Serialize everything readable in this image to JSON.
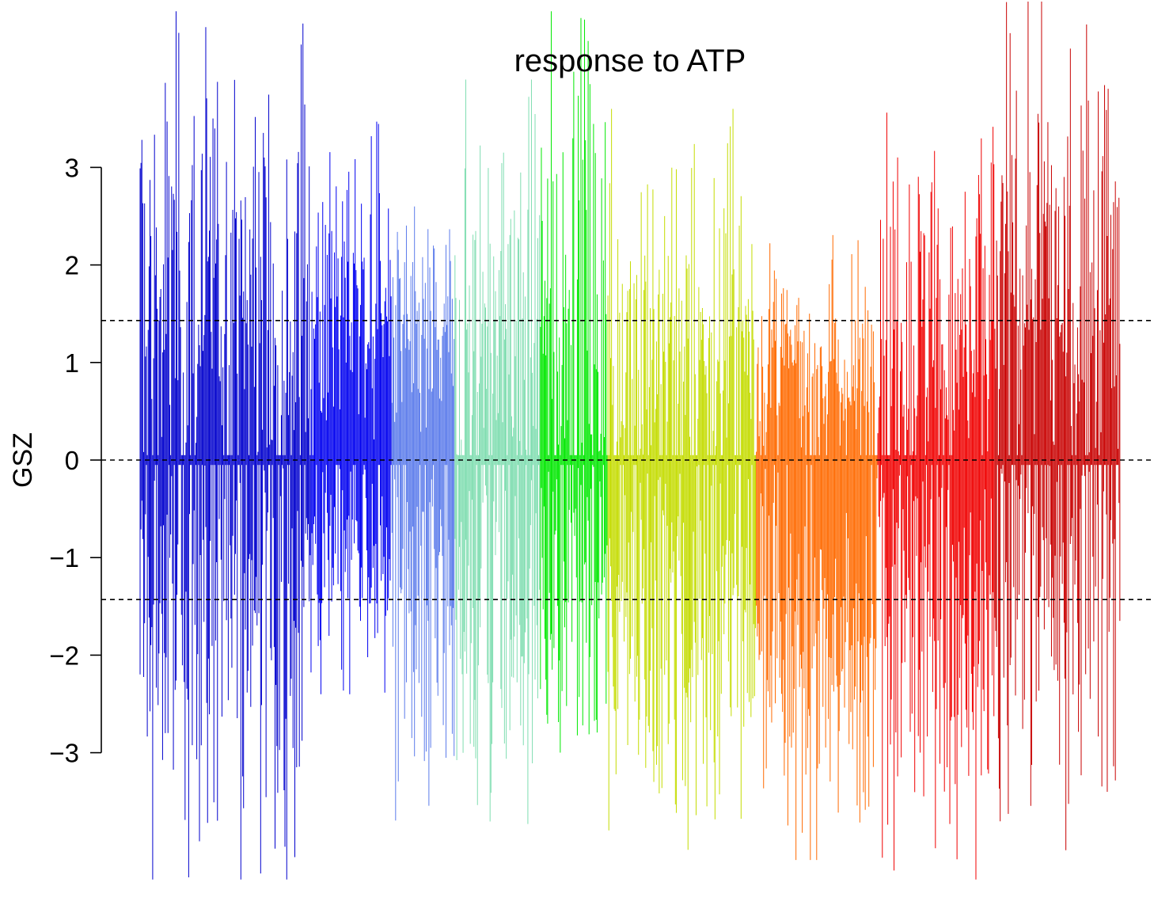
{
  "chart_data": {
    "type": "bar",
    "title": "response to ATP",
    "xlabel": "",
    "ylabel": "GSZ",
    "ylim": [
      -4.3,
      4.7
    ],
    "yticks": [
      3,
      2,
      1,
      0,
      -1,
      -2,
      -3
    ],
    "ytick_labels": [
      "3",
      "2",
      "1",
      "0",
      "−1",
      "−2",
      "−3"
    ],
    "reference_lines": [
      1.43,
      0,
      -1.43
    ],
    "grid": false,
    "legend": "none",
    "groups": [
      {
        "color": "#0000CD",
        "n": 190,
        "pos_mean": 1.6,
        "pos_max": 4.6,
        "neg_mean": -1.2,
        "neg_min": -4.3
      },
      {
        "color": "#0000F0",
        "n": 90,
        "pos_mean": 1.7,
        "pos_max": 3.5,
        "neg_mean": -0.9,
        "neg_min": -2.4
      },
      {
        "color": "#5B7BEB",
        "n": 70,
        "pos_mean": 1.2,
        "pos_max": 2.6,
        "neg_mean": -1.1,
        "neg_min": -3.8
      },
      {
        "color": "#7FDDB0",
        "n": 95,
        "pos_mean": 1.3,
        "pos_max": 3.9,
        "neg_mean": -1.4,
        "neg_min": -4.0
      },
      {
        "color": "#00E800",
        "n": 75,
        "pos_mean": 1.5,
        "pos_max": 4.6,
        "neg_mean": -1.3,
        "neg_min": -3.7
      },
      {
        "color": "#C4DC00",
        "n": 165,
        "pos_mean": 1.1,
        "pos_max": 3.6,
        "neg_mean": -1.6,
        "neg_min": -4.3
      },
      {
        "color": "#FF6A00",
        "n": 135,
        "pos_mean": 0.9,
        "pos_max": 2.4,
        "neg_mean": -2.0,
        "neg_min": -4.1
      },
      {
        "color": "#F00000",
        "n": 130,
        "pos_mean": 1.2,
        "pos_max": 3.7,
        "neg_mean": -1.8,
        "neg_min": -4.3
      },
      {
        "color": "#C80000",
        "n": 140,
        "pos_mean": 1.8,
        "pos_max": 4.7,
        "neg_mean": -1.0,
        "neg_min": -4.0
      }
    ]
  }
}
